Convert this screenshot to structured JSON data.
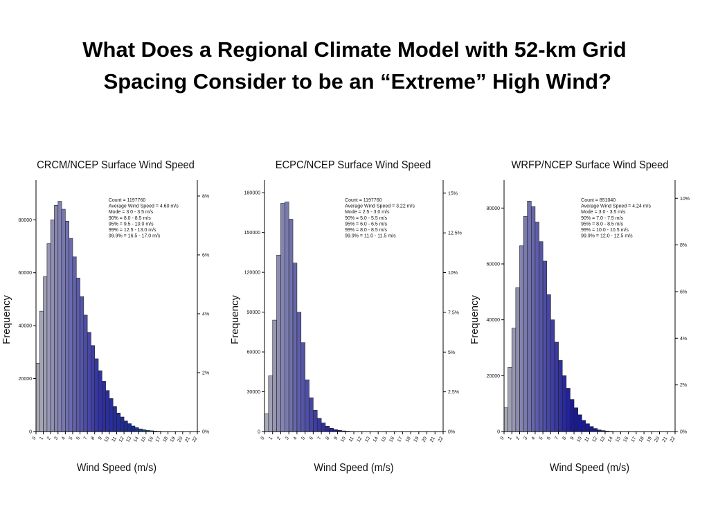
{
  "title": "What Does a Regional Climate Model with 52-km Grid Spacing Consider to be an “Extreme” High Wind?",
  "chart_data": [
    {
      "type": "histogram",
      "title": "CRCM/NCEP Surface Wind Speed",
      "xlabel": "Wind Speed (m/s)",
      "ylabel": "Frequency",
      "annotation": [
        "Count = 1197760",
        "Average Wind Speed = 4.60 m/s",
        "Mode = 3.0 - 3.5 m/s",
        "90% = 8.0 - 8.5 m/s",
        "95% = 9.5 - 10.0 m/s",
        "99% = 12.5 - 13.0 m/s",
        "99.9% = 16.5 - 17.0 m/s"
      ],
      "bins": [
        0,
        0.5,
        1,
        1.5,
        2,
        2.5,
        3,
        3.5,
        4,
        4.5,
        5,
        5.5,
        6,
        6.5,
        7,
        7.5,
        8,
        8.5,
        9,
        9.5,
        10,
        10.5,
        11,
        11.5,
        12,
        12.5,
        13,
        13.5,
        14,
        14.5,
        15,
        15.5,
        16,
        16.5,
        17,
        17.5,
        18,
        18.5,
        19,
        19.5,
        20,
        20.5,
        21,
        21.5,
        22
      ],
      "counts": [
        25800,
        45500,
        58500,
        71000,
        80000,
        85500,
        87000,
        84000,
        79500,
        73000,
        66000,
        58000,
        51000,
        44000,
        37500,
        32500,
        27500,
        23000,
        19000,
        15500,
        12500,
        9500,
        7000,
        5500,
        4000,
        3000,
        2100,
        1500,
        1000,
        700,
        450,
        300,
        200,
        120,
        60,
        30,
        0,
        0,
        0,
        0,
        0,
        0,
        0,
        0
      ],
      "colors": [
        "#b0b0b8",
        "#7070b0",
        "#3030a0",
        "#1a2a90",
        "#208a70",
        "#30a040"
      ],
      "xlim": [
        0,
        22
      ],
      "xticks": [
        0,
        1,
        2,
        3,
        4,
        5,
        6,
        7,
        8,
        9,
        10,
        11,
        12,
        13,
        14,
        15,
        16,
        17,
        18,
        19,
        20,
        21,
        22
      ],
      "ylim": [
        0,
        95000
      ],
      "yticks": [
        0,
        20000,
        40000,
        60000,
        80000
      ],
      "y2lim": [
        0,
        8.54
      ],
      "y2ticks": [
        {
          "value": 0,
          "label": "0%"
        },
        {
          "value": 2,
          "label": "2%"
        },
        {
          "value": 4,
          "label": "4%"
        },
        {
          "value": 6,
          "label": "6%"
        },
        {
          "value": 8,
          "label": "8%"
        }
      ]
    },
    {
      "type": "histogram",
      "title": "ECPC/NCEP Surface Wind Speed",
      "xlabel": "Wind Speed (m/s)",
      "ylabel": "Frequency",
      "annotation": [
        "Count = 1197760",
        "Average Wind Speed = 3.22 m/s",
        "Mode = 2.5 - 3.0 m/s",
        "90% = 5.0 - 5.5 m/s",
        "95% = 6.0 - 6.5 m/s",
        "99% = 8.0 - 8.5 m/s",
        "99.9% = 11.0 - 11.5 m/s"
      ],
      "bins": [
        0,
        0.5,
        1,
        1.5,
        2,
        2.5,
        3,
        3.5,
        4,
        4.5,
        5,
        5.5,
        6,
        6.5,
        7,
        7.5,
        8,
        8.5,
        9,
        9.5,
        10,
        10.5,
        11,
        11.5,
        12,
        12.5,
        13,
        13.5,
        14,
        14.5,
        15,
        15.5,
        16,
        16.5,
        17,
        17.5,
        18,
        18.5,
        19,
        19.5,
        20,
        20.5,
        21,
        21.5,
        22
      ],
      "counts": [
        13500,
        42000,
        84000,
        133000,
        172000,
        173000,
        160000,
        127000,
        90000,
        67000,
        39000,
        25500,
        16000,
        10000,
        6500,
        4000,
        2500,
        1500,
        900,
        500,
        300,
        150,
        80,
        0,
        0,
        0,
        0,
        0,
        0,
        0,
        0,
        0,
        0,
        0,
        0,
        0,
        0,
        0,
        0,
        0,
        0,
        0,
        0,
        0
      ],
      "colors": [
        "#b0b0b8",
        "#5a5aa8",
        "#1a1a98",
        "#1a1a90",
        "#1a1a90",
        "#1a1a90"
      ],
      "xlim": [
        0,
        22
      ],
      "xticks": [
        0,
        1,
        2,
        3,
        4,
        5,
        6,
        7,
        8,
        9,
        10,
        11,
        12,
        13,
        14,
        15,
        16,
        17,
        18,
        19,
        20,
        21,
        22
      ],
      "ylim": [
        0,
        189500
      ],
      "yticks": [
        0,
        30000,
        60000,
        90000,
        120000,
        150000,
        180000
      ],
      "y2lim": [
        0,
        15.82
      ],
      "y2ticks": [
        {
          "value": 0,
          "label": "0%"
        },
        {
          "value": 2.5,
          "label": "2.5%"
        },
        {
          "value": 5,
          "label": "5%"
        },
        {
          "value": 7.5,
          "label": "7.5%"
        },
        {
          "value": 10,
          "label": "10%"
        },
        {
          "value": 12.5,
          "label": "12.5%"
        },
        {
          "value": 15,
          "label": "15%"
        }
      ]
    },
    {
      "type": "histogram",
      "title": "WRFP/NCEP Surface Wind Speed",
      "xlabel": "Wind Speed (m/s)",
      "ylabel": "Frequency",
      "annotation": [
        "Count = 851040",
        "Average Wind Speed = 4.24 m/s",
        "Mode = 3.0 - 3.5 m/s",
        "90% = 7.0 - 7.5 m/s",
        "95% = 8.0 - 8.5 m/s",
        "99% = 10.0 - 10.5 m/s",
        "99.9% = 12.0 - 12.5 m/s"
      ],
      "bins": [
        0,
        0.5,
        1,
        1.5,
        2,
        2.5,
        3,
        3.5,
        4,
        4.5,
        5,
        5.5,
        6,
        6.5,
        7,
        7.5,
        8,
        8.5,
        9,
        9.5,
        10,
        10.5,
        11,
        11.5,
        12,
        12.5,
        13,
        13.5,
        14,
        14.5,
        15,
        15.5,
        16,
        16.5,
        17,
        17.5,
        18,
        18.5,
        19,
        19.5,
        20,
        20.5,
        21,
        21.5,
        22
      ],
      "counts": [
        8500,
        23000,
        37000,
        51500,
        66500,
        77000,
        82500,
        80500,
        75000,
        68000,
        61000,
        49000,
        40000,
        32000,
        25500,
        20000,
        15500,
        11500,
        8500,
        6000,
        4000,
        2800,
        1800,
        1100,
        600,
        350,
        200,
        100,
        0,
        0,
        0,
        0,
        0,
        0,
        0,
        0,
        0,
        0,
        0,
        0,
        0,
        0,
        0,
        0
      ],
      "colors": [
        "#b0b0b8",
        "#5a5aa8",
        "#1a1a98",
        "#1a1a90",
        "#1a1a90",
        "#1a1a90"
      ],
      "xlim": [
        0,
        22
      ],
      "xticks": [
        0,
        1,
        2,
        3,
        4,
        5,
        6,
        7,
        8,
        9,
        10,
        11,
        12,
        13,
        14,
        15,
        16,
        17,
        18,
        19,
        20,
        21,
        22
      ],
      "ylim": [
        0,
        90000
      ],
      "yticks": [
        0,
        20000,
        40000,
        60000,
        80000
      ],
      "y2lim": [
        0,
        10.78
      ],
      "y2ticks": [
        {
          "value": 0,
          "label": "0%"
        },
        {
          "value": 2,
          "label": "2%"
        },
        {
          "value": 4,
          "label": "4%"
        },
        {
          "value": 6,
          "label": "6%"
        },
        {
          "value": 8,
          "label": "8%"
        },
        {
          "value": 10,
          "label": "10%"
        }
      ]
    }
  ]
}
